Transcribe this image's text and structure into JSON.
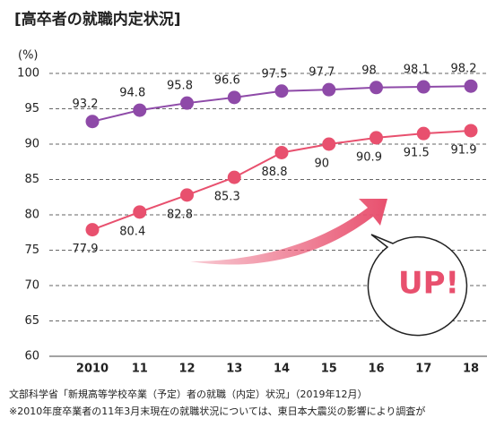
{
  "chart_data": {
    "type": "line",
    "title": "[高卒者の就職内定状況]",
    "y_label": "(%)",
    "categories": [
      "2010",
      "11",
      "12",
      "13",
      "14",
      "15",
      "16",
      "17",
      "18"
    ],
    "series": [
      {
        "color": "#8e4aa8",
        "values": [
          93.2,
          94.8,
          95.8,
          96.6,
          97.5,
          97.7,
          98.0,
          98.1,
          98.2
        ]
      },
      {
        "color": "#e8506e",
        "values": [
          77.9,
          80.4,
          82.8,
          85.3,
          88.8,
          90.0,
          90.9,
          91.5,
          91.9
        ]
      }
    ],
    "ylim": [
      60,
      100
    ],
    "yticks": [
      60,
      65,
      70,
      75,
      80,
      85,
      90,
      95,
      100
    ],
    "grid": true,
    "annotation": "UP!",
    "notes": [
      "文部科学省「新規高等学校卒業（予定）者の就職（内定）状況」（2019年12月）",
      "※2010年度卒業者の11年3月末現在の就職状況については、東日本大震災の影響により調査が"
    ]
  }
}
